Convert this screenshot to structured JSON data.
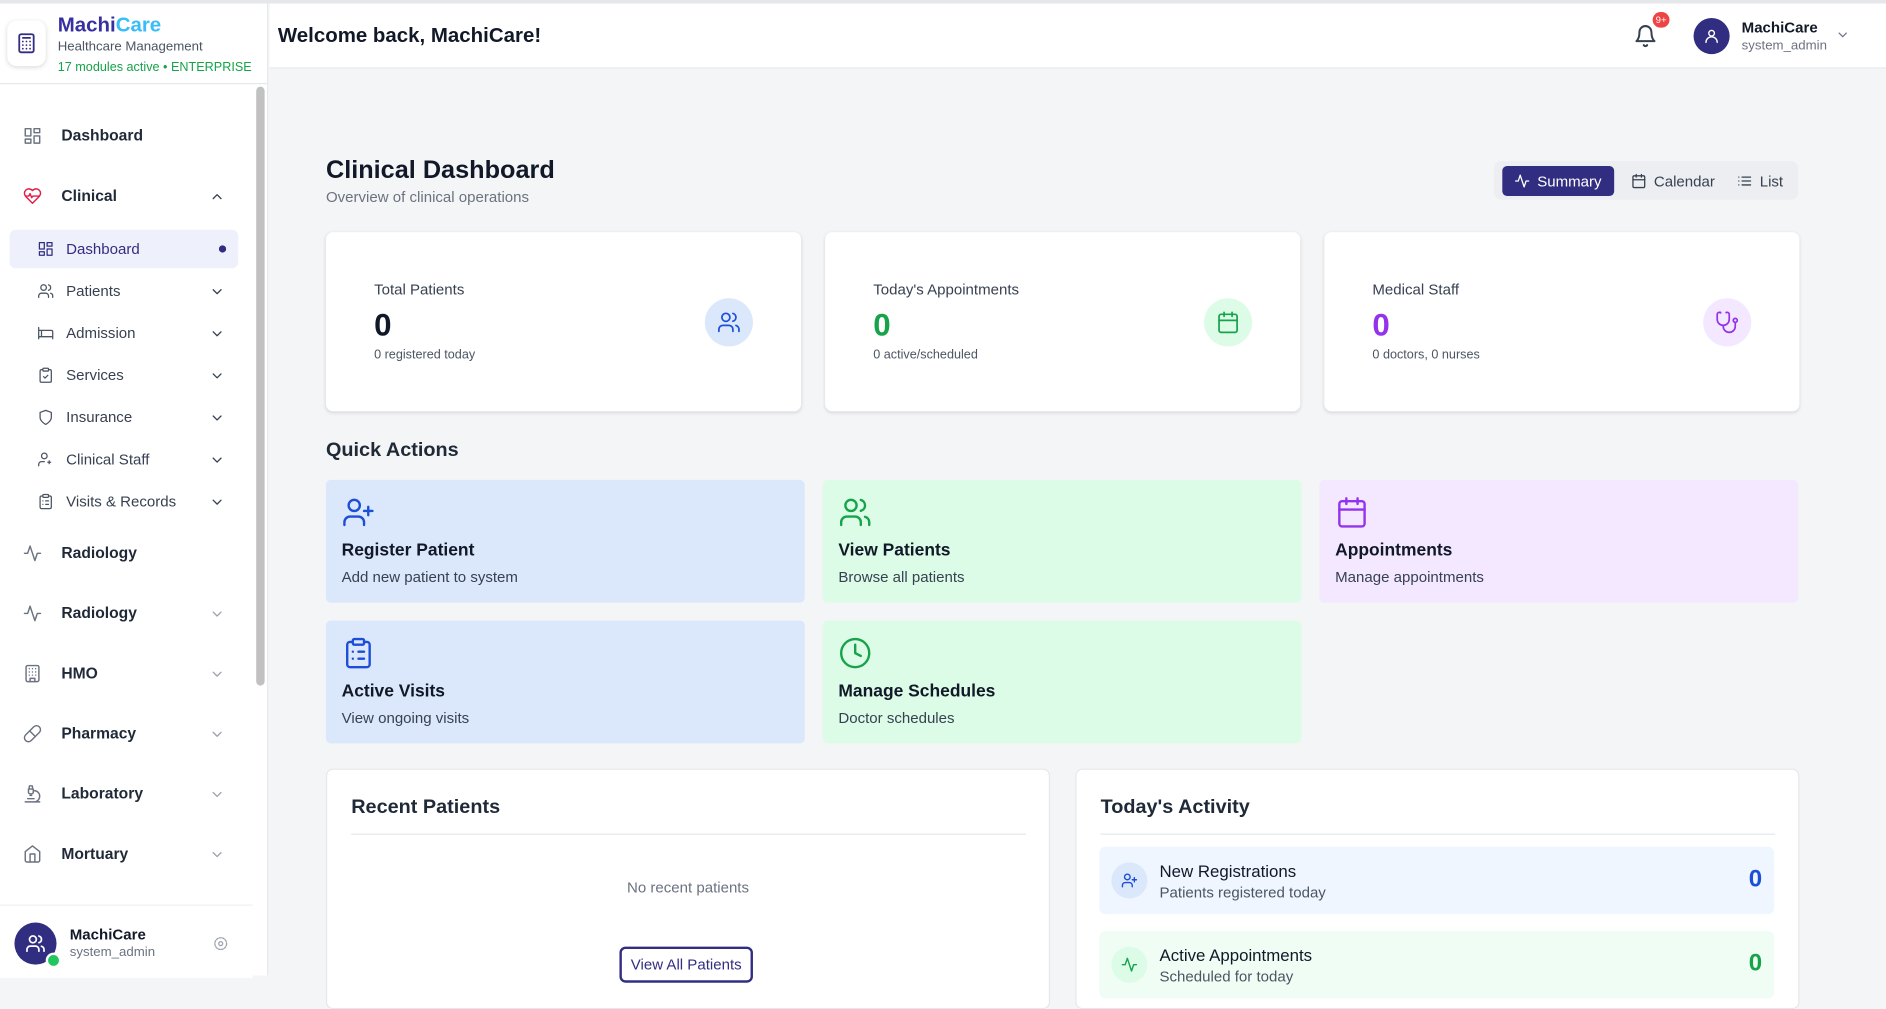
{
  "brand": {
    "name_primary": "Machi",
    "name_accent": "Care",
    "tagline": "Healthcare Management",
    "status": "17 modules active • ENTERPRISE"
  },
  "header": {
    "welcome": "Welcome back, MachiCare!",
    "notification_badge": "9+",
    "user": {
      "name": "MachiCare",
      "role": "system_admin"
    }
  },
  "sidebar": {
    "nav": [
      {
        "label": "Dashboard"
      },
      {
        "label": "Clinical",
        "children": [
          {
            "label": "Dashboard"
          },
          {
            "label": "Patients"
          },
          {
            "label": "Admission"
          },
          {
            "label": "Services"
          },
          {
            "label": "Insurance"
          },
          {
            "label": "Clinical Staff"
          },
          {
            "label": "Visits & Records"
          }
        ]
      },
      {
        "label": "Radiology"
      },
      {
        "label": "Radiology"
      },
      {
        "label": "HMO"
      },
      {
        "label": "Pharmacy"
      },
      {
        "label": "Laboratory"
      },
      {
        "label": "Mortuary"
      }
    ],
    "user": {
      "name": "MachiCare",
      "role": "system_admin"
    }
  },
  "page": {
    "title": "Clinical Dashboard",
    "subtitle": "Overview of clinical operations",
    "views": [
      "Summary",
      "Calendar",
      "List"
    ]
  },
  "stats": [
    {
      "label": "Total Patients",
      "value": 0,
      "note": "0 registered today"
    },
    {
      "label": "Today's Appointments",
      "value": 0,
      "note": "0 active/scheduled"
    },
    {
      "label": "Medical Staff",
      "value": 0,
      "note": "0 doctors, 0 nurses"
    }
  ],
  "quick_actions": {
    "title": "Quick Actions",
    "items": [
      {
        "title": "Register Patient",
        "description": "Add new patient to system"
      },
      {
        "title": "View Patients",
        "description": "Browse all patients"
      },
      {
        "title": "Appointments",
        "description": "Manage appointments"
      },
      {
        "title": "Active Visits",
        "description": "View ongoing visits"
      },
      {
        "title": "Manage Schedules",
        "description": "Doctor schedules"
      }
    ]
  },
  "recent_patients": {
    "title": "Recent Patients",
    "empty_message": "No recent patients",
    "button": "View All Patients"
  },
  "activity": {
    "title": "Today's Activity",
    "items": [
      {
        "title": "New Registrations",
        "subtitle": "Patients registered today",
        "value": 0
      },
      {
        "title": "Active Appointments",
        "subtitle": "Scheduled for today",
        "value": 0
      }
    ]
  }
}
